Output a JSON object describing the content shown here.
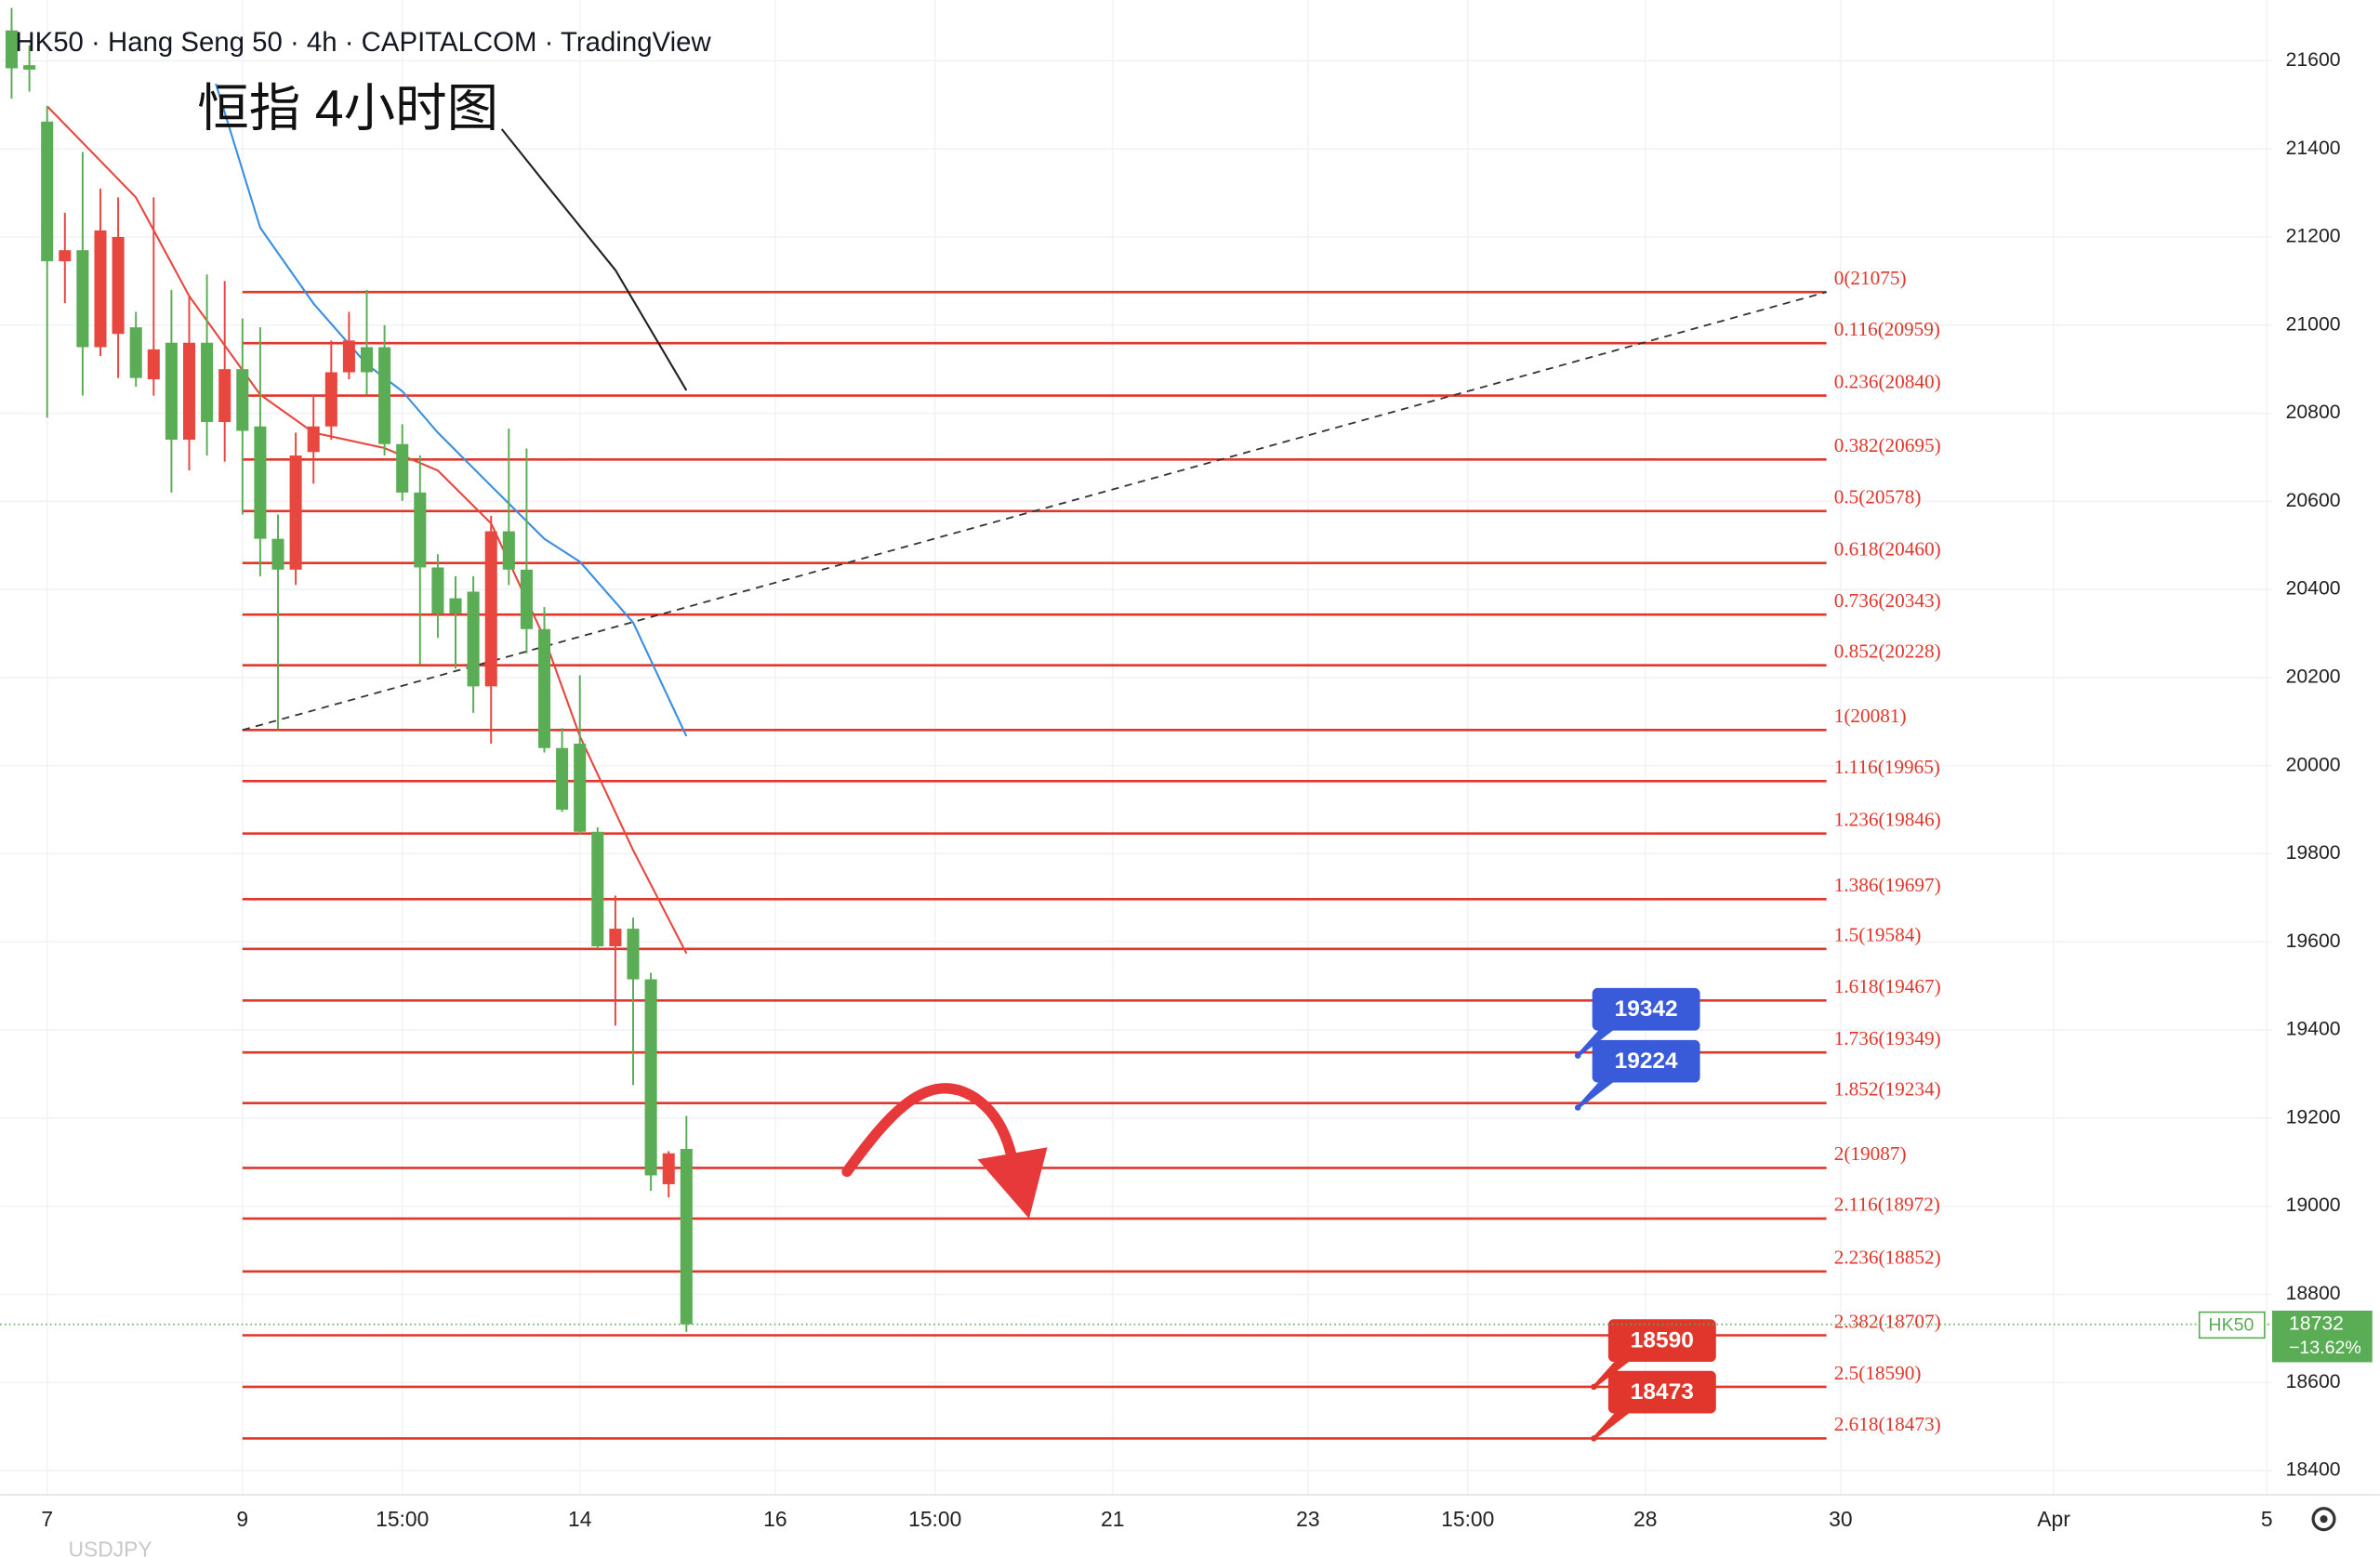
{
  "chart_data": {
    "type": "candlestick",
    "title": "HK50 · Hang Seng 50 · 4h · CAPITALCOM · TradingView",
    "annotation": "恒指 4小时图",
    "footer_symbol": "USDJPY",
    "up_color": "#e8473f",
    "down_color": "#5aac55",
    "grid": true,
    "xlim": [
      -2.65,
      125.3
    ],
    "ylim": [
      18345,
      21738
    ],
    "yticks": [
      18400,
      18600,
      18800,
      19000,
      19200,
      19400,
      19600,
      19800,
      20000,
      20200,
      20400,
      20600,
      20800,
      21000,
      21200,
      21400,
      21600
    ],
    "xticks": [
      {
        "value": 0,
        "label": "7"
      },
      {
        "value": 11,
        "label": "9"
      },
      {
        "value": 20,
        "label": "15:00"
      },
      {
        "value": 30,
        "label": "14"
      },
      {
        "value": 41,
        "label": "16"
      },
      {
        "value": 50,
        "label": "15:00"
      },
      {
        "value": 60,
        "label": "21"
      },
      {
        "value": 71,
        "label": "23"
      },
      {
        "value": 80,
        "label": "15:00"
      },
      {
        "value": 90,
        "label": "28"
      },
      {
        "value": 101,
        "label": "30"
      },
      {
        "value": 113,
        "label": "Apr"
      },
      {
        "value": 125,
        "label": "5"
      }
    ],
    "candles": {
      "x": [
        -2,
        -1,
        0,
        1,
        2,
        3,
        4,
        5,
        6,
        7,
        8,
        9,
        10,
        11,
        12,
        13,
        14,
        15,
        16,
        17,
        18,
        19,
        20,
        21,
        22,
        23,
        24,
        25,
        26,
        27,
        28,
        29,
        30,
        31,
        32,
        33,
        34,
        35,
        36
      ],
      "open": [
        21669,
        21590,
        21462,
        21145,
        21170,
        20950,
        20980,
        20995,
        20877,
        20960,
        20740,
        20960,
        20780,
        20900,
        20770,
        20515,
        20445,
        20712,
        20770,
        20893,
        20950,
        20950,
        20730,
        20620,
        20450,
        20380,
        20395,
        20180,
        20532,
        20445,
        20310,
        20040,
        20050,
        19850,
        19590,
        19630,
        19515,
        19050,
        19130
      ],
      "high": [
        21720,
        21635,
        21497,
        21255,
        21393,
        21310,
        21290,
        21030,
        21290,
        21080,
        21065,
        21115,
        21100,
        21015,
        20995,
        20570,
        20756,
        20842,
        20965,
        21030,
        21080,
        21000,
        20775,
        20704,
        20480,
        20430,
        20430,
        20567,
        20765,
        20720,
        20360,
        20085,
        20205,
        19860,
        19705,
        19655,
        19530,
        19125,
        19205
      ],
      "low": [
        21514,
        21530,
        20790,
        21050,
        20840,
        20930,
        20880,
        20860,
        20840,
        20620,
        20670,
        20704,
        20690,
        20570,
        20430,
        20084,
        20410,
        20640,
        20740,
        20877,
        20842,
        20704,
        20601,
        20230,
        20290,
        20220,
        20120,
        20050,
        20410,
        20255,
        20030,
        19895,
        19843,
        19585,
        19410,
        19275,
        19035,
        19020,
        18715
      ],
      "close": [
        21583,
        21580,
        21145,
        21170,
        20950,
        21215,
        21200,
        20880,
        20945,
        20740,
        20960,
        20780,
        20900,
        20760,
        20515,
        20445,
        20704,
        20770,
        20893,
        20965,
        20893,
        20730,
        20620,
        20450,
        20345,
        20345,
        20180,
        20532,
        20445,
        20310,
        20040,
        19900,
        19850,
        19590,
        19630,
        19515,
        19070,
        19120,
        18732
      ]
    },
    "lines": [
      {
        "color": "#e8473f",
        "x": [
          0,
          5,
          8,
          12,
          15,
          19,
          22,
          25,
          28,
          30,
          33,
          36
        ],
        "values": [
          21497,
          21290,
          21066,
          20842,
          20756,
          20721,
          20670,
          20550,
          20290,
          20067,
          19808,
          19574
        ]
      },
      {
        "color": "#3a8fe0",
        "x": [
          9.5,
          12,
          15,
          18,
          20,
          22,
          25,
          28,
          30,
          33,
          36
        ],
        "values": [
          21548,
          21221,
          21049,
          20911,
          20850,
          20756,
          20635,
          20515,
          20463,
          20325,
          20067
        ]
      },
      {
        "color": "#222222",
        "x": [
          25.6,
          28,
          32,
          36
        ],
        "values": [
          21445,
          21324,
          21125,
          20852
        ]
      }
    ],
    "trendline": {
      "x": [
        11,
        100.2
      ],
      "values": [
        20081,
        21075
      ],
      "color": "#333333"
    },
    "fib_color": "#e0362c",
    "fib_x": [
      11,
      100.2
    ],
    "fib_levels": [
      {
        "label": "0(21075)",
        "value": 21075
      },
      {
        "label": "0.116(20959)",
        "value": 20959
      },
      {
        "label": "0.236(20840)",
        "value": 20840
      },
      {
        "label": "0.382(20695)",
        "value": 20695
      },
      {
        "label": "0.5(20578)",
        "value": 20578
      },
      {
        "label": "0.618(20460)",
        "value": 20460
      },
      {
        "label": "0.736(20343)",
        "value": 20343
      },
      {
        "label": "0.852(20228)",
        "value": 20228
      },
      {
        "label": "1(20081)",
        "value": 20081
      },
      {
        "label": "1.116(19965)",
        "value": 19965
      },
      {
        "label": "1.236(19846)",
        "value": 19846
      },
      {
        "label": "1.386(19697)",
        "value": 19697
      },
      {
        "label": "1.5(19584)",
        "value": 19584
      },
      {
        "label": "1.618(19467)",
        "value": 19467
      },
      {
        "label": "1.736(19349)",
        "value": 19349
      },
      {
        "label": "1.852(19234)",
        "value": 19234
      },
      {
        "label": "2(19087)",
        "value": 19087
      },
      {
        "label": "2.116(18972)",
        "value": 18972
      },
      {
        "label": "2.236(18852)",
        "value": 18852
      },
      {
        "label": "2.382(18707)",
        "value": 18707
      },
      {
        "label": "2.5(18590)",
        "value": 18590
      },
      {
        "label": "2.618(18473)",
        "value": 18473
      }
    ],
    "callouts": [
      {
        "value": 19342,
        "x": 86.2,
        "color": "#3a5bd9"
      },
      {
        "value": 19224,
        "x": 86.2,
        "color": "#3a5bd9"
      },
      {
        "value": 18590,
        "x": 87.1,
        "color": "#e0362c"
      },
      {
        "value": 18473,
        "x": 87.1,
        "color": "#e0362c"
      }
    ],
    "symbol_tag": "HK50",
    "last_price": 18732,
    "change_label": "−13.62%"
  }
}
